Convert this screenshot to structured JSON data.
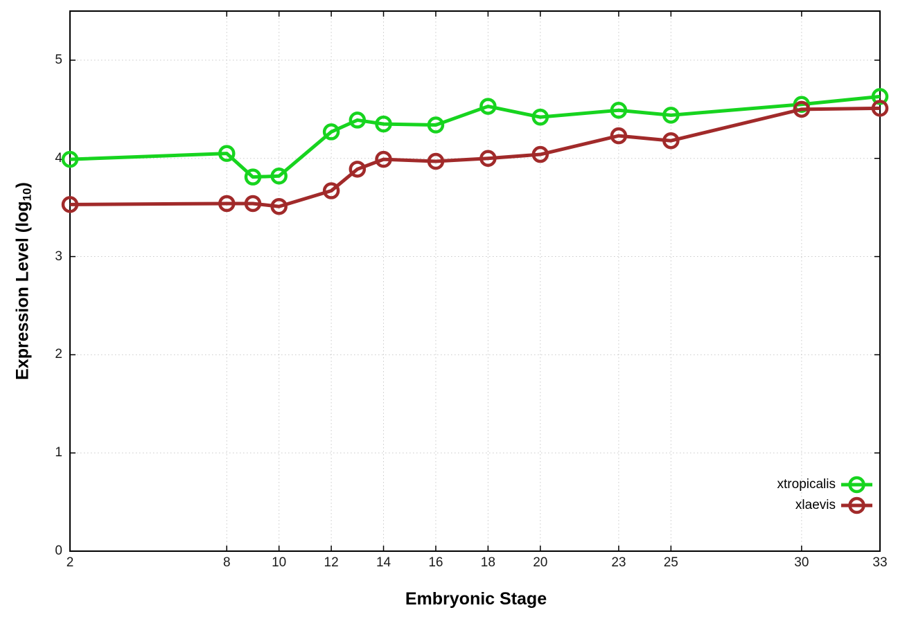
{
  "chart_data": {
    "type": "line",
    "xlabel": "Embryonic Stage",
    "ylabel": "Expression Level (log10)",
    "ylabel_parts": {
      "main": "Expression Level (log",
      "sub": "10",
      "close": ")"
    },
    "xlim": [
      2,
      33
    ],
    "ylim": [
      0,
      5.5
    ],
    "x_ticks": [
      2,
      8,
      10,
      12,
      14,
      16,
      18,
      20,
      23,
      25,
      30,
      33
    ],
    "y_ticks": [
      0,
      1,
      2,
      3,
      4,
      5
    ],
    "grid": true,
    "legend_position": "inside-bottom-right",
    "background_color": "#ffffff",
    "axis_color": "#000000",
    "grid_color": "#c9c9c9",
    "tick_label_color": "#1a1a1a",
    "x": [
      2,
      8,
      9,
      10,
      12,
      13,
      14,
      16,
      18,
      20,
      23,
      25,
      30,
      33
    ],
    "series": [
      {
        "name": "xtropicalis",
        "color": "#17d41f",
        "marker": "open-circle",
        "values": [
          3.99,
          4.05,
          3.81,
          3.82,
          4.27,
          4.39,
          4.35,
          4.34,
          4.53,
          4.42,
          4.49,
          4.44,
          4.55,
          4.63
        ]
      },
      {
        "name": "xlaevis",
        "color": "#a12a2a",
        "marker": "open-circle",
        "values": [
          3.53,
          3.54,
          3.54,
          3.51,
          3.67,
          3.89,
          3.99,
          3.97,
          4.0,
          4.04,
          4.23,
          4.18,
          4.5,
          4.51
        ]
      }
    ]
  }
}
